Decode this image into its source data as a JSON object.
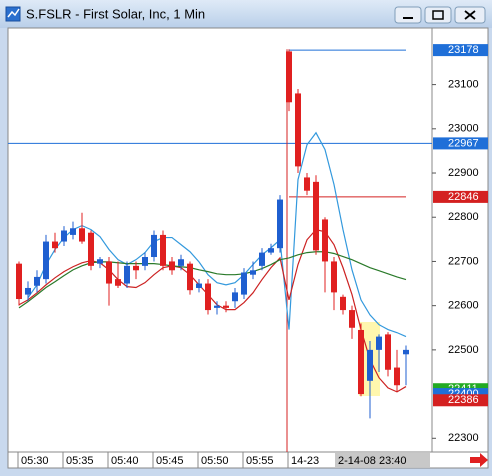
{
  "chart_data": {
    "type": "candlestick",
    "title": "S.FSLR - First Solar, Inc, 1 Min",
    "categories": [
      "05:30",
      null,
      null,
      null,
      null,
      "05:35",
      null,
      null,
      null,
      null,
      "05:40",
      null,
      null,
      null,
      null,
      "05:45",
      null,
      null,
      null,
      null,
      "05:50",
      null,
      null,
      null,
      null,
      "05:55",
      null,
      null,
      null,
      null,
      "14-23",
      null,
      null,
      null,
      null,
      null,
      null,
      null,
      null,
      null,
      null,
      null,
      null,
      null
    ],
    "open": [
      22695,
      22625,
      22645,
      22660,
      22745,
      22745,
      22760,
      22775,
      22765,
      22695,
      22700,
      22660,
      22650,
      22690,
      22690,
      22710,
      22760,
      22700,
      22690,
      22695,
      22640,
      22650,
      22595,
      22600,
      22610,
      22625,
      22670,
      22690,
      22720,
      22730,
      23175,
      23080,
      22890,
      22880,
      22795,
      22700,
      22620,
      22590,
      22545,
      22430,
      22500,
      22535,
      22460,
      22490
    ],
    "high": [
      22700,
      22655,
      22680,
      22760,
      22765,
      22780,
      22790,
      22810,
      22770,
      22710,
      22710,
      22700,
      22700,
      22700,
      22720,
      22770,
      22770,
      22710,
      22715,
      22700,
      22660,
      22660,
      22610,
      22610,
      22640,
      22685,
      22700,
      22730,
      22740,
      22850,
      23180,
      23090,
      22900,
      22895,
      22800,
      22710,
      22625,
      22600,
      22560,
      22520,
      22535,
      22540,
      22500,
      22510
    ],
    "low": [
      22600,
      22610,
      22630,
      22650,
      22720,
      22735,
      22750,
      22740,
      22680,
      22685,
      22600,
      22640,
      22640,
      22660,
      22680,
      22700,
      22680,
      22670,
      22680,
      22625,
      22630,
      22580,
      22580,
      22585,
      22595,
      22615,
      22660,
      22680,
      22715,
      22720,
      23040,
      22900,
      22850,
      22715,
      22630,
      22590,
      22580,
      22525,
      22395,
      22345,
      22450,
      22440,
      22405,
      22420
    ],
    "close": [
      22615,
      22640,
      22665,
      22745,
      22730,
      22770,
      22775,
      22745,
      22690,
      22705,
      22650,
      22645,
      22690,
      22680,
      22710,
      22760,
      22690,
      22680,
      22705,
      22635,
      22650,
      22590,
      22600,
      22595,
      22630,
      22675,
      22680,
      22720,
      22730,
      22840,
      23060,
      22915,
      22860,
      22725,
      22700,
      22630,
      22590,
      22550,
      22400,
      22500,
      22530,
      22455,
      22420,
      22500
    ],
    "up_color": "#1f5fd0",
    "down_color": "#e02020",
    "overlays": [
      {
        "color": "#3399dd",
        "values": [
          null,
          22618,
          22647,
          22693,
          22727,
          22754,
          22772,
          22781,
          22772,
          22756,
          22727,
          22704,
          22693,
          22704,
          22720,
          22745,
          22754,
          22754,
          22738,
          22722,
          22699,
          22670,
          22652,
          22647,
          22652,
          22670,
          22693,
          22715,
          22731,
          22749,
          22546,
          22885,
          22964,
          22991,
          22953,
          22874,
          22772,
          22681,
          22613,
          22579,
          22557,
          22546,
          22539,
          22530
        ]
      },
      {
        "color": "#cc2222",
        "values": [
          22602,
          22613,
          22629,
          22647,
          22663,
          22677,
          22688,
          22697,
          22702,
          22697,
          22681,
          22659,
          22643,
          22641,
          22652,
          22670,
          22686,
          22690,
          22686,
          22670,
          22647,
          22625,
          22602,
          22591,
          22591,
          22607,
          22629,
          22659,
          22686,
          22708,
          22613,
          22693,
          22749,
          22772,
          22767,
          22738,
          22686,
          22625,
          22546,
          22478,
          22437,
          22414,
          22405,
          22417
        ]
      },
      {
        "color": "#2a7a2a",
        "values": [
          22595,
          22609,
          22625,
          22641,
          22654,
          22668,
          22681,
          22690,
          22697,
          22699,
          22699,
          22697,
          22695,
          22695,
          22695,
          22695,
          22693,
          22690,
          22688,
          22686,
          22681,
          22677,
          22672,
          22670,
          22670,
          22672,
          22677,
          22684,
          22693,
          22704,
          22708,
          22715,
          22720,
          22722,
          22722,
          22718,
          22711,
          22704,
          22695,
          22686,
          22679,
          22672,
          22665,
          22659
        ]
      }
    ],
    "levels": [
      {
        "value": 23178,
        "color": "#1f6fd8",
        "span": "session"
      },
      {
        "value": 22967,
        "color": "#1f6fd8",
        "span": "full"
      },
      {
        "value": 22846,
        "color": "#d42020",
        "span": "session"
      },
      {
        "value": 22411,
        "color": "#22aa22",
        "span": "none"
      },
      {
        "value": 22400,
        "color": "#1f6fd8",
        "span": "none"
      },
      {
        "value": 22386,
        "color": "#d42020",
        "span": "none"
      }
    ],
    "ylim": [
      22269,
      23228
    ],
    "yticks": [
      22300,
      22500,
      22600,
      22700,
      22800,
      22900,
      23000,
      23100
    ],
    "cursor_label": "2-14-08 23:40"
  }
}
